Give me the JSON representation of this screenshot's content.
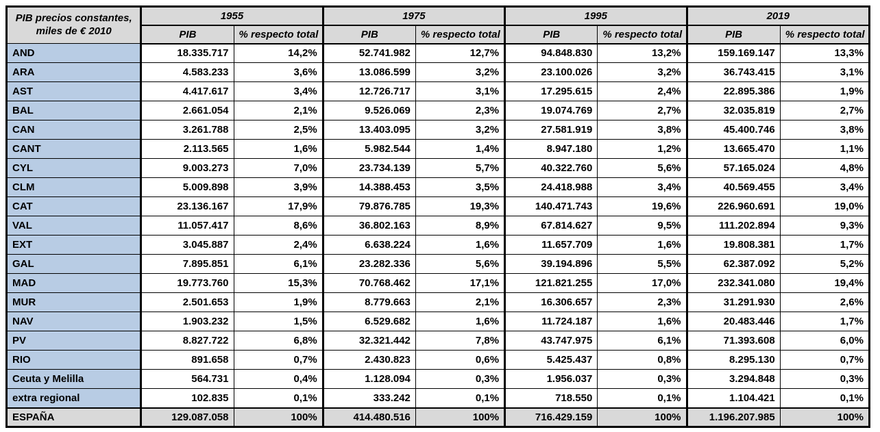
{
  "header": {
    "corner_line1": "PIB precios constantes,",
    "corner_line2": "miles de € 2010",
    "pib_label": "PIB",
    "pct_label": "% respecto total"
  },
  "colors": {
    "header_bg": "#d9d9d9",
    "region_bg": "#b8cce4",
    "total_bg": "#d9d9d9",
    "border": "#000000",
    "cell_bg": "#ffffff"
  },
  "chart_data": {
    "type": "table",
    "title": "PIB precios constantes, miles de € 2010",
    "column_groups": [
      "1955",
      "1975",
      "1995",
      "2019"
    ],
    "sub_columns": [
      "PIB",
      "% respecto total"
    ],
    "rows": [
      {
        "name": "AND",
        "values": [
          "18.335.717",
          "14,2%",
          "52.741.982",
          "12,7%",
          "94.848.830",
          "13,2%",
          "159.169.147",
          "13,3%"
        ]
      },
      {
        "name": "ARA",
        "values": [
          "4.583.233",
          "3,6%",
          "13.086.599",
          "3,2%",
          "23.100.026",
          "3,2%",
          "36.743.415",
          "3,1%"
        ]
      },
      {
        "name": "AST",
        "values": [
          "4.417.617",
          "3,4%",
          "12.726.717",
          "3,1%",
          "17.295.615",
          "2,4%",
          "22.895.386",
          "1,9%"
        ]
      },
      {
        "name": "BAL",
        "values": [
          "2.661.054",
          "2,1%",
          "9.526.069",
          "2,3%",
          "19.074.769",
          "2,7%",
          "32.035.819",
          "2,7%"
        ]
      },
      {
        "name": "CAN",
        "values": [
          "3.261.788",
          "2,5%",
          "13.403.095",
          "3,2%",
          "27.581.919",
          "3,8%",
          "45.400.746",
          "3,8%"
        ]
      },
      {
        "name": "CANT",
        "values": [
          "2.113.565",
          "1,6%",
          "5.982.544",
          "1,4%",
          "8.947.180",
          "1,2%",
          "13.665.470",
          "1,1%"
        ]
      },
      {
        "name": "CYL",
        "values": [
          "9.003.273",
          "7,0%",
          "23.734.139",
          "5,7%",
          "40.322.760",
          "5,6%",
          "57.165.024",
          "4,8%"
        ]
      },
      {
        "name": "CLM",
        "values": [
          "5.009.898",
          "3,9%",
          "14.388.453",
          "3,5%",
          "24.418.988",
          "3,4%",
          "40.569.455",
          "3,4%"
        ]
      },
      {
        "name": "CAT",
        "values": [
          "23.136.167",
          "17,9%",
          "79.876.785",
          "19,3%",
          "140.471.743",
          "19,6%",
          "226.960.691",
          "19,0%"
        ]
      },
      {
        "name": "VAL",
        "values": [
          "11.057.417",
          "8,6%",
          "36.802.163",
          "8,9%",
          "67.814.627",
          "9,5%",
          "111.202.894",
          "9,3%"
        ]
      },
      {
        "name": "EXT",
        "values": [
          "3.045.887",
          "2,4%",
          "6.638.224",
          "1,6%",
          "11.657.709",
          "1,6%",
          "19.808.381",
          "1,7%"
        ]
      },
      {
        "name": "GAL",
        "values": [
          "7.895.851",
          "6,1%",
          "23.282.336",
          "5,6%",
          "39.194.896",
          "5,5%",
          "62.387.092",
          "5,2%"
        ]
      },
      {
        "name": "MAD",
        "values": [
          "19.773.760",
          "15,3%",
          "70.768.462",
          "17,1%",
          "121.821.255",
          "17,0%",
          "232.341.080",
          "19,4%"
        ]
      },
      {
        "name": "MUR",
        "values": [
          "2.501.653",
          "1,9%",
          "8.779.663",
          "2,1%",
          "16.306.657",
          "2,3%",
          "31.291.930",
          "2,6%"
        ]
      },
      {
        "name": "NAV",
        "values": [
          "1.903.232",
          "1,5%",
          "6.529.682",
          "1,6%",
          "11.724.187",
          "1,6%",
          "20.483.446",
          "1,7%"
        ]
      },
      {
        "name": "PV",
        "values": [
          "8.827.722",
          "6,8%",
          "32.321.442",
          "7,8%",
          "43.747.975",
          "6,1%",
          "71.393.608",
          "6,0%"
        ]
      },
      {
        "name": "RIO",
        "values": [
          "891.658",
          "0,7%",
          "2.430.823",
          "0,6%",
          "5.425.437",
          "0,8%",
          "8.295.130",
          "0,7%"
        ]
      },
      {
        "name": "Ceuta y Melilla",
        "values": [
          "564.731",
          "0,4%",
          "1.128.094",
          "0,3%",
          "1.956.037",
          "0,3%",
          "3.294.848",
          "0,3%"
        ]
      },
      {
        "name": "extra regional",
        "values": [
          "102.835",
          "0,1%",
          "333.242",
          "0,1%",
          "718.550",
          "0,1%",
          "1.104.421",
          "0,1%"
        ]
      }
    ],
    "total": {
      "name": "ESPAÑA",
      "values": [
        "129.087.058",
        "100%",
        "414.480.516",
        "100%",
        "716.429.159",
        "100%",
        "1.196.207.985",
        "100%"
      ]
    }
  }
}
